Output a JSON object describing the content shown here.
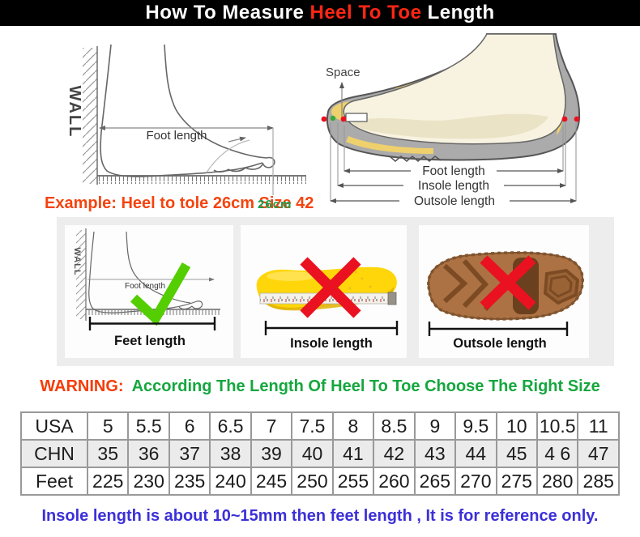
{
  "header": {
    "title_prefix": "How To Measure ",
    "title_highlight": "Heel To Toe",
    "title_suffix": " Length"
  },
  "left_diagram": {
    "wall_label": "WALL",
    "foot_length_label": "Foot length",
    "example_text": "Example: Heel to tole 26cm Size 42",
    "ruler_mark": "26cm"
  },
  "right_diagram": {
    "space_label": "Space",
    "foot_length_label": "Foot length",
    "insole_length_label": "Insole length",
    "outsole_length_label": "Outsole length"
  },
  "panels": {
    "feet": {
      "wall_label": "WALL",
      "inner_label": "Foot length",
      "caption": "Feet length"
    },
    "insole": {
      "caption": "Insole length"
    },
    "outsole": {
      "caption": "Outsole length"
    }
  },
  "warning": {
    "label": "WARNING:",
    "text": "According The Length Of Heel To Toe Choose The Right Size"
  },
  "size_table": {
    "rows": [
      {
        "header": "USA",
        "shaded": false,
        "values": [
          "5",
          "5.5",
          "6",
          "6.5",
          "7",
          "7.5",
          "8",
          "8.5",
          "9",
          "9.5",
          "10",
          "10.5",
          "11"
        ]
      },
      {
        "header": "CHN",
        "shaded": true,
        "values": [
          "35",
          "36",
          "37",
          "38",
          "39",
          "40",
          "41",
          "42",
          "43",
          "44",
          "45",
          "4 6",
          "47"
        ]
      },
      {
        "header": "Feet",
        "shaded": false,
        "values": [
          "225",
          "230",
          "235",
          "240",
          "245",
          "250",
          "255",
          "260",
          "265",
          "270",
          "275",
          "280",
          "285"
        ]
      }
    ]
  },
  "footer": {
    "note": "Insole length is about 10~15mm then feet length , It is for reference only."
  },
  "colors": {
    "banner_bg": "#000000",
    "banner_highlight": "#ff2615",
    "example_orange": "#f4440f",
    "ruler_green": "#12a251",
    "warning_red": "#f63b05",
    "warning_green": "#15a73e",
    "note_blue": "#3c30d8",
    "cross_red": "#ea1120",
    "check_green": "#54ce01",
    "insole_yellow": "#ffd60a",
    "outsole_brown": "#ad7243",
    "shoe_gray": "#ababab",
    "band_gray": "#ededed",
    "table_border": "#999999",
    "table_shaded_row": "#ebebeb"
  }
}
